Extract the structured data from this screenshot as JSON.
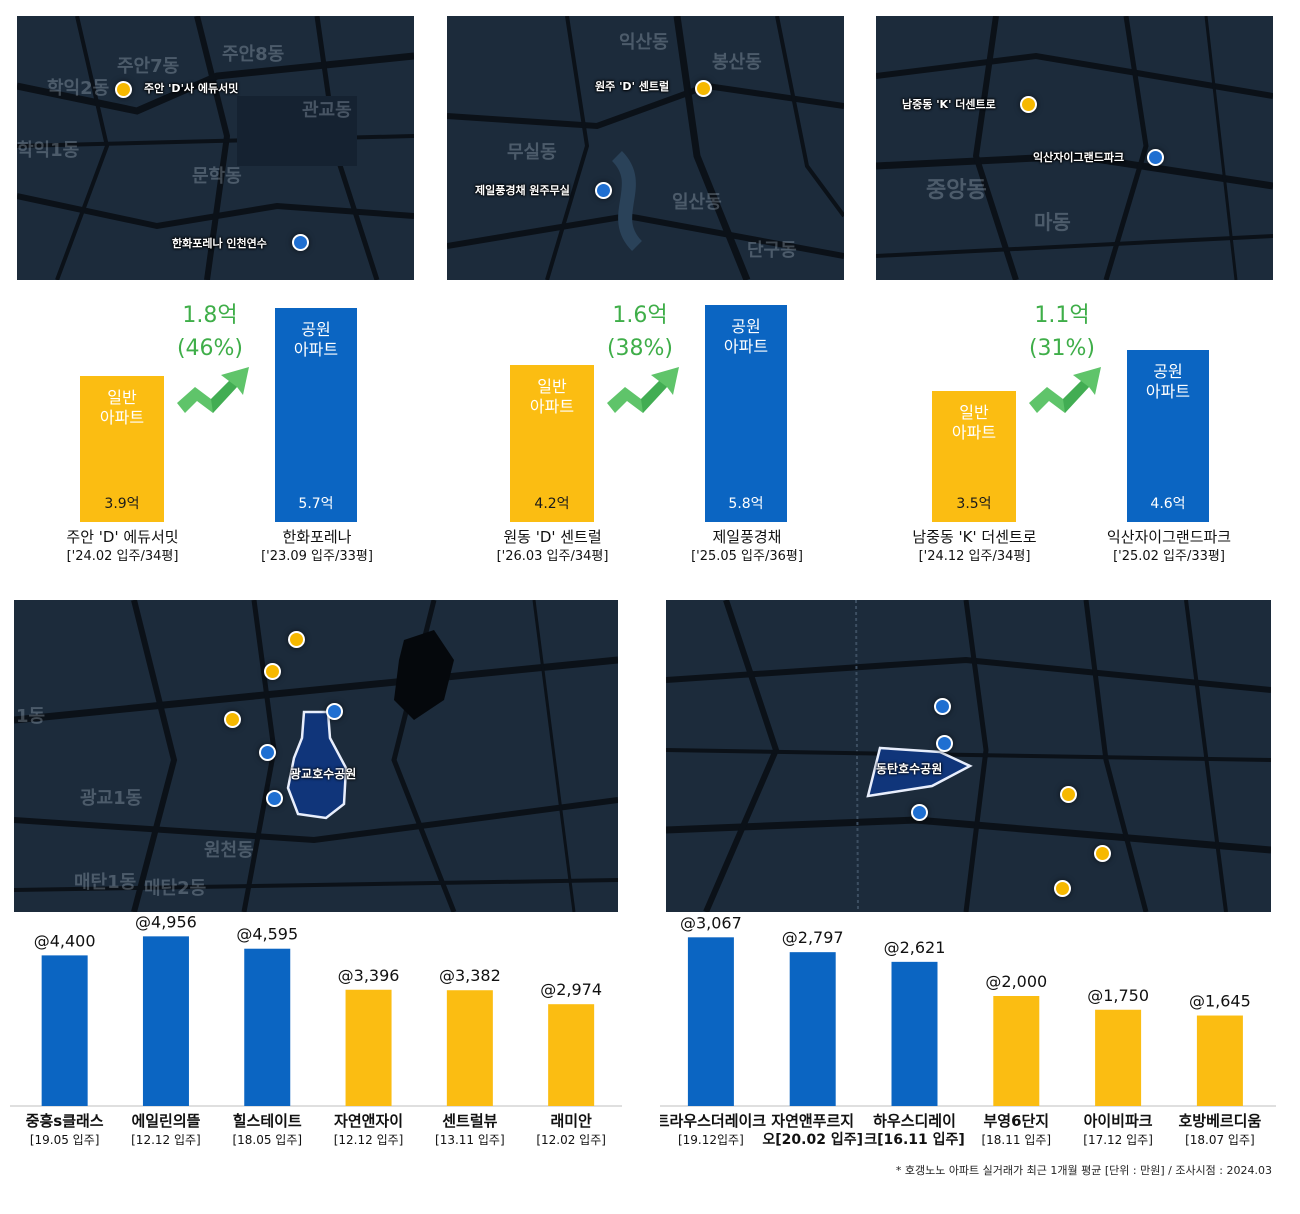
{
  "top_panels": [
    {
      "map": {
        "labels": [
          "주안 'D'사 에듀서밋",
          "한화포레나 인천연수"
        ],
        "districts": [
          "주안7동",
          "주안8동",
          "학익2동",
          "학익1동",
          "문학동",
          "관교동"
        ]
      },
      "diff_amount": "1.8억",
      "diff_pct": "(46%)",
      "general": {
        "type": "일반\n아파트",
        "value": "3.9억",
        "name": "주안 'D' 에듀서밋",
        "detail": "['24.02 입주/34평]",
        "amount": 3.9
      },
      "park": {
        "type": "공원\n아파트",
        "value": "5.7억",
        "name": "한화포레나",
        "detail": "['23.09 입주/33평]",
        "amount": 5.7
      }
    },
    {
      "map": {
        "labels": [
          "원주 'D' 센트럴",
          "제일풍경채 원주무실"
        ],
        "districts": [
          "익산동",
          "봉산동",
          "무실동",
          "일산동",
          "단구동"
        ]
      },
      "diff_amount": "1.6억",
      "diff_pct": "(38%)",
      "general": {
        "type": "일반\n아파트",
        "value": "4.2억",
        "name": "원동 'D' 센트럴",
        "detail": "['26.03 입주/34평]",
        "amount": 4.2
      },
      "park": {
        "type": "공원\n아파트",
        "value": "5.8억",
        "name": "제일풍경채",
        "detail": "['25.05 입주/36평]",
        "amount": 5.8
      }
    },
    {
      "map": {
        "labels": [
          "남중동 'K' 더센트로",
          "익산자이그랜드파크"
        ],
        "districts": [
          "중앙동",
          "마동"
        ]
      },
      "diff_amount": "1.1억",
      "diff_pct": "(31%)",
      "general": {
        "type": "일반\n아파트",
        "value": "3.5억",
        "name": "남중동 'K' 더센트로",
        "detail": "['24.12 입주/34평]",
        "amount": 3.5
      },
      "park": {
        "type": "공원\n아파트",
        "value": "4.6억",
        "name": "익산자이그랜드파크",
        "detail": "['25.02 입주/33평]",
        "amount": 4.6
      }
    }
  ],
  "bottom_maps": [
    {
      "park_label": "광교호수공원",
      "districts": [
        "1동",
        "광교1동",
        "매탄1동",
        "매탄2동",
        "원천동"
      ]
    },
    {
      "park_label": "동탄호수공원",
      "districts": []
    }
  ],
  "colors": {
    "park": "#0b65c2",
    "general": "#fbbd12",
    "increase": "#3fae49",
    "map_bg": "#1c2b3b"
  },
  "chart_data": [
    {
      "type": "bar",
      "categories": [
        "중흥s클래스",
        "에일린의뜰",
        "힐스테이트",
        "자연앤자이",
        "센트럴뷰",
        "래미안"
      ],
      "sublabels": [
        "[19.05 입주]",
        "[12.12 입주]",
        "[18.05 입주]",
        "[12.12 입주]",
        "[13.11 입주]",
        "[12.02 입주]"
      ],
      "values": [
        4400,
        4956,
        4595,
        3396,
        3382,
        2974
      ],
      "value_labels": [
        "@4,400",
        "@4,956",
        "@4,595",
        "@3,396",
        "@3,382",
        "@2,974"
      ],
      "kinds": [
        "park",
        "park",
        "park",
        "general",
        "general",
        "general"
      ],
      "ylim": [
        0,
        5200
      ]
    },
    {
      "type": "bar",
      "categories": [
        "트라우스더레이크",
        "자연앤푸르지오",
        "하우스디레이크",
        "부영6단지",
        "아이비파크",
        "호방베르디움"
      ],
      "category_lines": [
        [
          "트라우스더레이크"
        ],
        [
          "자연앤푸르지",
          "오[20.02 입주]"
        ],
        [
          "하우스디레이",
          "크[16.11 입주]"
        ],
        [
          "부영6단지"
        ],
        [
          "아이비파크"
        ],
        [
          "호방베르디움"
        ]
      ],
      "sublabels": [
        "[19.12입주]",
        "",
        "",
        "[18.11 입주]",
        "[17.12 입주]",
        "[18.07 입주]"
      ],
      "values": [
        3067,
        2797,
        2621,
        2000,
        1750,
        1645
      ],
      "value_labels": [
        "@3,067",
        "@2,797",
        "@2,621",
        "@2,000",
        "@1,750",
        "@1,645"
      ],
      "kinds": [
        "park",
        "park",
        "park",
        "general",
        "general",
        "general"
      ],
      "ylim": [
        0,
        3200
      ]
    }
  ],
  "footnote": "* 호갱노노 아파트 실거래가 최근 1개월 평균 [단위 : 만원] / 조사시점 : 2024.03"
}
